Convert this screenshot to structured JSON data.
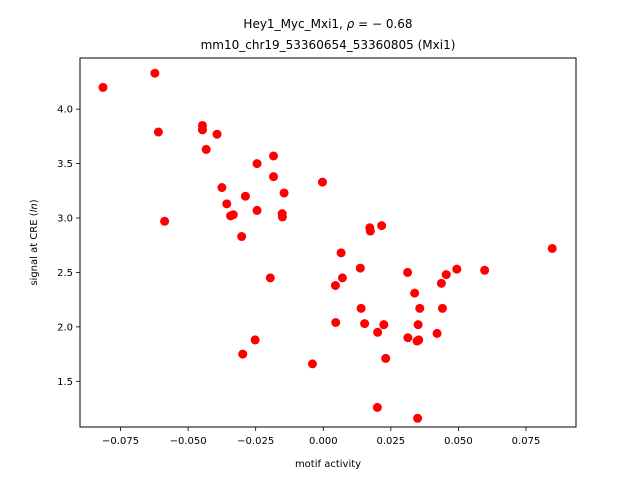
{
  "chart_data": {
    "type": "scatter",
    "title_line1_prefix": "Hey1_Myc_Mxi1, ",
    "title_rho_symbol": "ρ",
    "title_rho_value": " = − 0.68",
    "title_line2": "mm10_chr19_53360654_53360805 (Mxi1)",
    "xlabel": "motif activity",
    "ylabel_prefix": "signal at CRE (",
    "ylabel_italic": "ln",
    "ylabel_suffix": ")",
    "xlim": [
      -0.09,
      0.0935
    ],
    "ylim": [
      1.08,
      4.47
    ],
    "x_ticks": [
      -0.075,
      -0.05,
      -0.025,
      0.0,
      0.025,
      0.05,
      0.075
    ],
    "x_tick_labels": [
      "−0.075",
      "−0.050",
      "−0.025",
      "0.000",
      "0.025",
      "0.050",
      "0.075"
    ],
    "y_ticks": [
      1.5,
      2.0,
      2.5,
      3.0,
      3.5,
      4.0
    ],
    "y_tick_labels": [
      "1.5",
      "2.0",
      "2.5",
      "3.0",
      "3.5",
      "4.0"
    ],
    "marker_color": "#ff0000",
    "grid": false,
    "points": [
      {
        "x": -0.0815,
        "y": 4.2
      },
      {
        "x": -0.0623,
        "y": 4.33
      },
      {
        "x": -0.061,
        "y": 3.79
      },
      {
        "x": -0.0587,
        "y": 2.97
      },
      {
        "x": -0.0447,
        "y": 3.85
      },
      {
        "x": -0.0447,
        "y": 3.81
      },
      {
        "x": -0.0433,
        "y": 3.63
      },
      {
        "x": -0.0393,
        "y": 3.77
      },
      {
        "x": -0.0375,
        "y": 3.28
      },
      {
        "x": -0.0357,
        "y": 3.13
      },
      {
        "x": -0.0343,
        "y": 3.02
      },
      {
        "x": -0.0333,
        "y": 3.03
      },
      {
        "x": -0.0302,
        "y": 2.83
      },
      {
        "x": -0.0298,
        "y": 1.75
      },
      {
        "x": -0.0288,
        "y": 3.2
      },
      {
        "x": -0.0252,
        "y": 1.88
      },
      {
        "x": -0.0245,
        "y": 3.5
      },
      {
        "x": -0.0245,
        "y": 3.07
      },
      {
        "x": -0.0196,
        "y": 2.45
      },
      {
        "x": -0.0184,
        "y": 3.57
      },
      {
        "x": -0.0184,
        "y": 3.38
      },
      {
        "x": -0.0152,
        "y": 3.04
      },
      {
        "x": -0.0151,
        "y": 3.01
      },
      {
        "x": -0.0145,
        "y": 3.23
      },
      {
        "x": -0.004,
        "y": 1.66
      },
      {
        "x": -0.0003,
        "y": 3.33
      },
      {
        "x": 0.0045,
        "y": 2.38
      },
      {
        "x": 0.0046,
        "y": 2.04
      },
      {
        "x": 0.0066,
        "y": 2.68
      },
      {
        "x": 0.0071,
        "y": 2.45
      },
      {
        "x": 0.0137,
        "y": 2.54
      },
      {
        "x": 0.014,
        "y": 2.17
      },
      {
        "x": 0.0153,
        "y": 2.03
      },
      {
        "x": 0.0172,
        "y": 2.91
      },
      {
        "x": 0.0174,
        "y": 2.88
      },
      {
        "x": 0.02,
        "y": 1.26
      },
      {
        "x": 0.0201,
        "y": 1.95
      },
      {
        "x": 0.0216,
        "y": 2.93
      },
      {
        "x": 0.0224,
        "y": 2.02
      },
      {
        "x": 0.0231,
        "y": 1.71
      },
      {
        "x": 0.0312,
        "y": 2.5
      },
      {
        "x": 0.0313,
        "y": 1.9
      },
      {
        "x": 0.0338,
        "y": 2.31
      },
      {
        "x": 0.0347,
        "y": 1.87
      },
      {
        "x": 0.0349,
        "y": 1.16
      },
      {
        "x": 0.0351,
        "y": 2.02
      },
      {
        "x": 0.0353,
        "y": 1.88
      },
      {
        "x": 0.0357,
        "y": 2.17
      },
      {
        "x": 0.0421,
        "y": 1.94
      },
      {
        "x": 0.0437,
        "y": 2.4
      },
      {
        "x": 0.0441,
        "y": 2.17
      },
      {
        "x": 0.0455,
        "y": 2.48
      },
      {
        "x": 0.0494,
        "y": 2.53
      },
      {
        "x": 0.0597,
        "y": 2.52
      },
      {
        "x": 0.0847,
        "y": 2.72
      }
    ]
  }
}
